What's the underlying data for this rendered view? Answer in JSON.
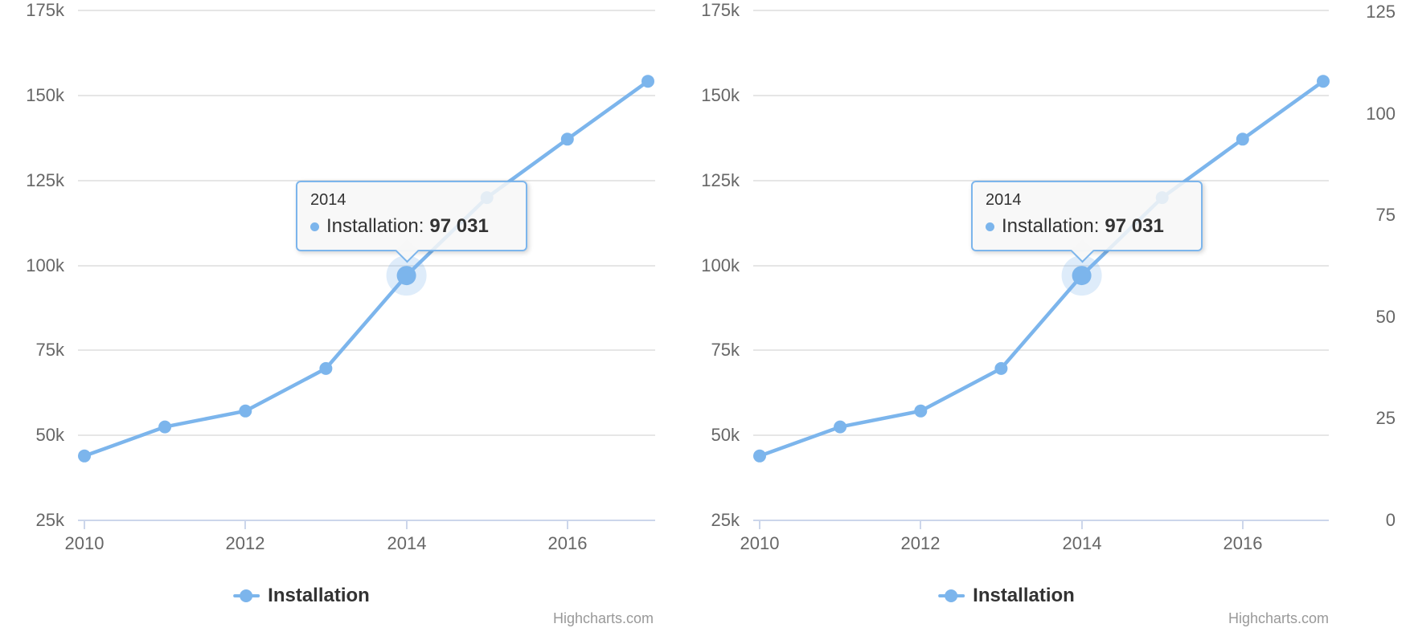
{
  "chart_data": [
    {
      "type": "line",
      "title": "",
      "x": [
        2010,
        2011,
        2012,
        2013,
        2014,
        2015,
        2016,
        2017
      ],
      "series": [
        {
          "name": "Installation",
          "color": "#7cb5ec",
          "values": [
            43934,
            52503,
            57177,
            69658,
            97031,
            119931,
            137133,
            154175
          ]
        }
      ],
      "xticks": [
        "2010",
        "2012",
        "2014",
        "2016"
      ],
      "yaxis_left": {
        "tick_labels": [
          "175k",
          "150k",
          "125k",
          "100k",
          "75k",
          "50k",
          "25k"
        ],
        "tick_values": [
          175000,
          150000,
          125000,
          100000,
          75000,
          50000,
          25000
        ],
        "min": 25000,
        "max": 175000
      },
      "yaxis_right": null,
      "grid": "horizontal-only",
      "legend_position": "bottom-center",
      "legend": "Installation",
      "tooltip": {
        "header": "2014",
        "series_label": "Installation:",
        "value": "97 031",
        "point_index": 4
      },
      "credits": "Highcharts.com"
    },
    {
      "type": "line",
      "title": "",
      "x": [
        2010,
        2011,
        2012,
        2013,
        2014,
        2015,
        2016,
        2017
      ],
      "series": [
        {
          "name": "Installation",
          "color": "#7cb5ec",
          "values": [
            43934,
            52503,
            57177,
            69658,
            97031,
            119931,
            137133,
            154175
          ]
        }
      ],
      "xticks": [
        "2010",
        "2012",
        "2014",
        "2016"
      ],
      "yaxis_left": {
        "tick_labels": [
          "175k",
          "150k",
          "125k",
          "100k",
          "75k",
          "50k",
          "25k"
        ],
        "tick_values": [
          175000,
          150000,
          125000,
          100000,
          75000,
          50000,
          25000
        ],
        "min": 25000,
        "max": 175000
      },
      "yaxis_right": {
        "tick_labels": [
          "125",
          "100",
          "75",
          "50",
          "25",
          "0"
        ],
        "tick_values": [
          125,
          100,
          75,
          50,
          25,
          0
        ],
        "min": 0,
        "max": 125
      },
      "grid": "horizontal-only",
      "legend_position": "bottom-center",
      "legend": "Installation",
      "tooltip": {
        "header": "2014",
        "series_label": "Installation:",
        "value": "97 031",
        "point_index": 4
      },
      "credits": "Highcharts.com"
    }
  ],
  "colors": {
    "series": "#7cb5ec",
    "gridline": "#e6e6e6",
    "axis_line": "#ccd6eb",
    "axis_label": "#666666",
    "legend_text": "#333333",
    "tooltip_text": "#333333",
    "tooltip_bg": "#f7f7f7",
    "halo": "rgba(124,181,236,0.25)",
    "credits_text": "#999999",
    "background": "#ffffff"
  }
}
